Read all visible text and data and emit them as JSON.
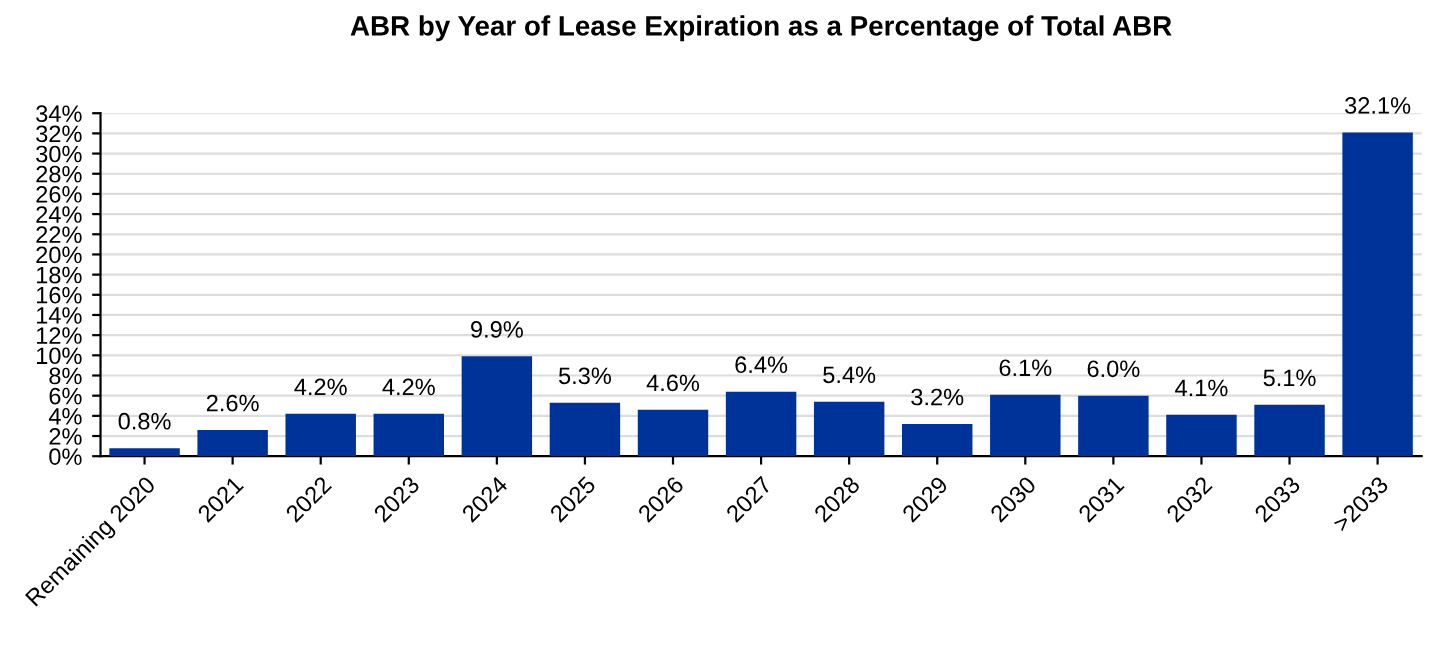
{
  "chart_data": {
    "type": "bar",
    "title": "ABR by Year of Lease Expiration as a Percentage of Total ABR",
    "categories": [
      "Remaining 2020",
      "2021",
      "2022",
      "2023",
      "2024",
      "2025",
      "2026",
      "2027",
      "2028",
      "2029",
      "2030",
      "2031",
      "2032",
      "2033",
      ">2033"
    ],
    "values": [
      0.8,
      2.6,
      4.2,
      4.2,
      9.9,
      5.3,
      4.6,
      6.4,
      5.4,
      3.2,
      6.1,
      6.0,
      4.1,
      5.1,
      32.1
    ],
    "value_labels": [
      "0.8%",
      "2.6%",
      "4.2%",
      "4.2%",
      "9.9%",
      "5.3%",
      "4.6%",
      "6.4%",
      "5.4%",
      "3.2%",
      "6.1%",
      "6.0%",
      "4.1%",
      "5.1%",
      "32.1%"
    ],
    "color": "#003399",
    "ylim": [
      0,
      34
    ],
    "yticks": [
      {
        "value": 0,
        "label": "0%"
      },
      {
        "value": 2,
        "label": "2%"
      },
      {
        "value": 4,
        "label": "4%"
      },
      {
        "value": 6,
        "label": "6%"
      },
      {
        "value": 8,
        "label": "8%"
      },
      {
        "value": 10,
        "label": "10%"
      },
      {
        "value": 12,
        "label": "12%"
      },
      {
        "value": 14,
        "label": "14%"
      },
      {
        "value": 16,
        "label": "16%"
      },
      {
        "value": 18,
        "label": "18%"
      },
      {
        "value": 20,
        "label": "20%"
      },
      {
        "value": 22,
        "label": "22%"
      },
      {
        "value": 24,
        "label": "24%"
      },
      {
        "value": 26,
        "label": "26%"
      },
      {
        "value": 28,
        "label": "28%"
      },
      {
        "value": 30,
        "label": "30%"
      },
      {
        "value": 32,
        "label": "32%"
      },
      {
        "value": 34,
        "label": "34%"
      }
    ],
    "grid": "y"
  }
}
